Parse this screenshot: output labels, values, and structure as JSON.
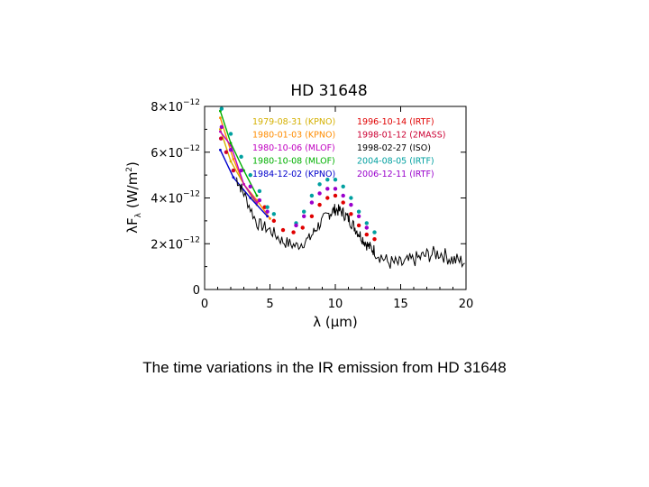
{
  "caption": "The time variations in the IR emission from HD 31648",
  "chart_data": {
    "type": "scatter",
    "title": "HD 31648",
    "xlabel": "λ (μm)",
    "ylabel": "λF",
    "ylabel_sub": "λ",
    "ylabel_units": "(W/m",
    "ylabel_units_sup": "2",
    "ylabel_units_close": ")",
    "xlim": [
      0,
      20
    ],
    "ylim": [
      0,
      8e-12
    ],
    "xticks": [
      0,
      5,
      10,
      15,
      20
    ],
    "xtick_labels": [
      "0",
      "5",
      "10",
      "15",
      "20"
    ],
    "yticks": [
      0,
      2e-12,
      4e-12,
      6e-12,
      8e-12
    ],
    "ytick_labels": [
      {
        "base": "0",
        "exp": ""
      },
      {
        "base": "2×10",
        "exp": "−12"
      },
      {
        "base": "4×10",
        "exp": "−12"
      },
      {
        "base": "6×10",
        "exp": "−12"
      },
      {
        "base": "8×10",
        "exp": "−12"
      }
    ],
    "grid": false,
    "legend_position": "top",
    "series": [
      {
        "name": "1979-08-31 (KPNO)",
        "color": "#d4b000",
        "style": "line",
        "x": [
          1.2,
          2.0,
          3.0,
          4.0
        ],
        "y": [
          7e-12,
          5.6e-12,
          4.6e-12,
          3.7e-12
        ]
      },
      {
        "name": "1980-01-03 (KPNO)",
        "color": "#ff8c00",
        "style": "line",
        "x": [
          1.2,
          2.2,
          3.0,
          4.0,
          5.0
        ],
        "y": [
          7.5e-12,
          5.7e-12,
          4.6e-12,
          3.9e-12,
          3.1e-12
        ]
      },
      {
        "name": "1980-10-06 (MLOF)",
        "color": "#c000c0",
        "style": "line",
        "x": [
          1.2,
          2.0,
          3.0,
          4.0
        ],
        "y": [
          6.9e-12,
          6.3e-12,
          4.6e-12,
          3.8e-12
        ]
      },
      {
        "name": "1980-10-08 (MLOF)",
        "color": "#00b000",
        "style": "line",
        "x": [
          1.2,
          2.0,
          3.0,
          4.0
        ],
        "y": [
          7.8e-12,
          6.4e-12,
          5.2e-12,
          4.1e-12
        ]
      },
      {
        "name": "1984-12-02 (KPNO)",
        "color": "#0000cc",
        "style": "line",
        "x": [
          1.2,
          2.2,
          3.5,
          4.8
        ],
        "y": [
          6.1e-12,
          4.9e-12,
          4e-12,
          3.2e-12
        ]
      },
      {
        "name": "1996-10-14 (IRTF)",
        "color": "#e00000",
        "style": "dots",
        "x": [
          4.6,
          5.3,
          6.0,
          6.8,
          7.5,
          8.2,
          8.8,
          9.4,
          10.0,
          10.6,
          11.2,
          11.8,
          12.4,
          13.0
        ],
        "y": [
          3.6e-12,
          3e-12,
          2.6e-12,
          2.5e-12,
          2.7e-12,
          3.2e-12,
          3.7e-12,
          4e-12,
          4.1e-12,
          3.8e-12,
          3.3e-12,
          2.8e-12,
          2.4e-12,
          2.2e-12
        ]
      },
      {
        "name": "1998-01-12 (2MASS)",
        "color": "#cc0033",
        "style": "dots",
        "x": [
          1.25,
          1.65,
          2.2
        ],
        "y": [
          6.6e-12,
          6e-12,
          5.2e-12
        ]
      },
      {
        "name": "1998-02-27 (ISO)",
        "color": "#000000",
        "style": "spectrum",
        "x": [
          2.4,
          3.0,
          4.0,
          5.0,
          6.0,
          7.0,
          8.0,
          8.7,
          9.5,
          10.0,
          10.5,
          11.0,
          11.5,
          12.0,
          12.5,
          13.0,
          14.0,
          15.0,
          16.0,
          17.0,
          18.0,
          19.0,
          20.0
        ],
        "y": [
          4.9e-12,
          4.2e-12,
          2.9e-12,
          2.6e-12,
          2.1e-12,
          1.9e-12,
          2.2e-12,
          2.8e-12,
          3.3e-12,
          3.5e-12,
          3.4e-12,
          3.1e-12,
          2.7e-12,
          2.3e-12,
          1.9e-12,
          1.7e-12,
          1.2e-12,
          1.1e-12,
          1.3e-12,
          1.5e-12,
          1.6e-12,
          1.3e-12,
          1.2e-12
        ]
      },
      {
        "name": "2004-08-05 (IRTF)",
        "color": "#00a0a0",
        "style": "dots",
        "x": [
          1.3,
          2.0,
          2.8,
          3.5,
          4.2,
          4.8,
          5.3,
          7.0,
          7.6,
          8.2,
          8.8,
          9.4,
          10.0,
          10.6,
          11.2,
          11.8,
          12.4,
          13.0
        ],
        "y": [
          7.9e-12,
          6.8e-12,
          5.8e-12,
          5e-12,
          4.3e-12,
          3.6e-12,
          3.3e-12,
          2.9e-12,
          3.4e-12,
          4.1e-12,
          4.6e-12,
          4.8e-12,
          4.8e-12,
          4.5e-12,
          4e-12,
          3.4e-12,
          2.9e-12,
          2.5e-12
        ]
      },
      {
        "name": "2006-12-11 (IRTF)",
        "color": "#9900cc",
        "style": "dots",
        "x": [
          1.3,
          2.0,
          2.8,
          3.5,
          4.2,
          4.8,
          7.0,
          7.6,
          8.2,
          8.8,
          9.4,
          10.0,
          10.6,
          11.2,
          11.8,
          12.4
        ],
        "y": [
          7.1e-12,
          6.1e-12,
          5.2e-12,
          4.5e-12,
          3.9e-12,
          3.4e-12,
          2.8e-12,
          3.2e-12,
          3.8e-12,
          4.2e-12,
          4.4e-12,
          4.4e-12,
          4.1e-12,
          3.7e-12,
          3.2e-12,
          2.7e-12
        ]
      }
    ]
  }
}
